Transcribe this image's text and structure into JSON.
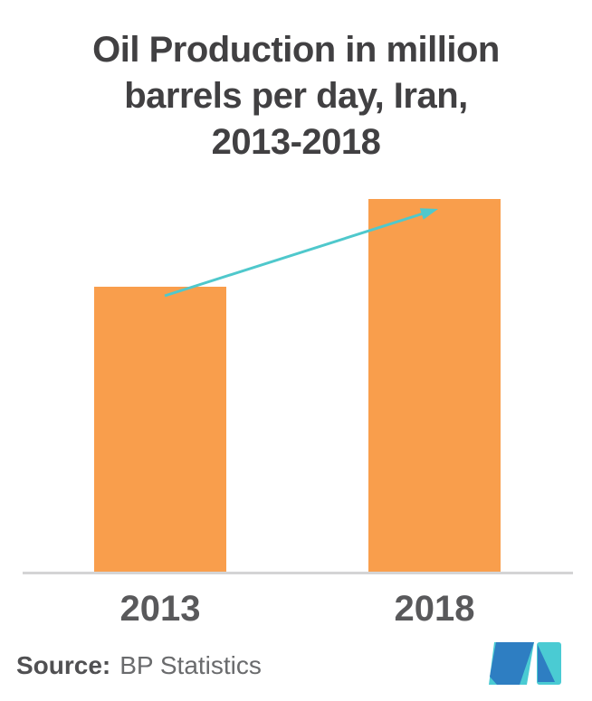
{
  "chart_data": {
    "type": "bar",
    "title": "Oil Production in million barrels per day, Iran, 2013-2018",
    "title_lines": [
      "Oil Production in million",
      "barrels per day, Iran,",
      "2013-2018"
    ],
    "categories": [
      "2013",
      "2018"
    ],
    "values": [
      3.6,
      4.7
    ],
    "unit": "million barrels per day",
    "xlabel": "",
    "ylabel": "",
    "grid": false,
    "legend": false,
    "value_axis_shown": false,
    "trend_arrow": "upward arrow from top of 2013 bar to top of 2018 bar",
    "bar_color": "#F99E4C",
    "trend_arrow_color": "#4FC8CC",
    "axis_line_color": "#D4D4D5",
    "title_color": "#414042",
    "label_color": "#59595B"
  },
  "footer": {
    "source_label": "Source:",
    "source_value": "BP Statistics",
    "logo_icon": "mordor-intelligence-logo",
    "logo_colors": {
      "teal": "#4ACBD3",
      "blue": "#2E7EC2"
    }
  }
}
